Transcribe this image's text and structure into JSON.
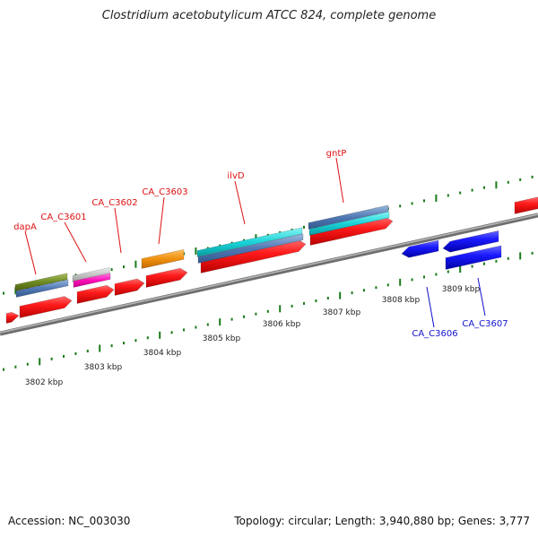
{
  "title": "Clostridium acetobutylicum ATCC 824, complete genome",
  "footer": {
    "accession": "Accession: NC_003030",
    "stats": "Topology: circular; Length: 3,940,880 bp; Genes: 3,777"
  },
  "colors": {
    "backbone": "#8a8a8a",
    "tick": "#1a7a1a",
    "label_red": "#d11",
    "label_blue": "#11c"
  },
  "kbp_labels": [
    "3802 kbp",
    "3803 kbp",
    "3804 kbp",
    "3805 kbp",
    "3806 kbp",
    "3807 kbp",
    "3808 kbp",
    "3809 kbp"
  ],
  "gene_labels_top": [
    "dapA",
    "CA_C3601",
    "CA_C3602",
    "CA_C3603",
    "ilvD",
    "gntP"
  ],
  "gene_labels_bottom": [
    "CA_C3606",
    "CA_C3607"
  ]
}
